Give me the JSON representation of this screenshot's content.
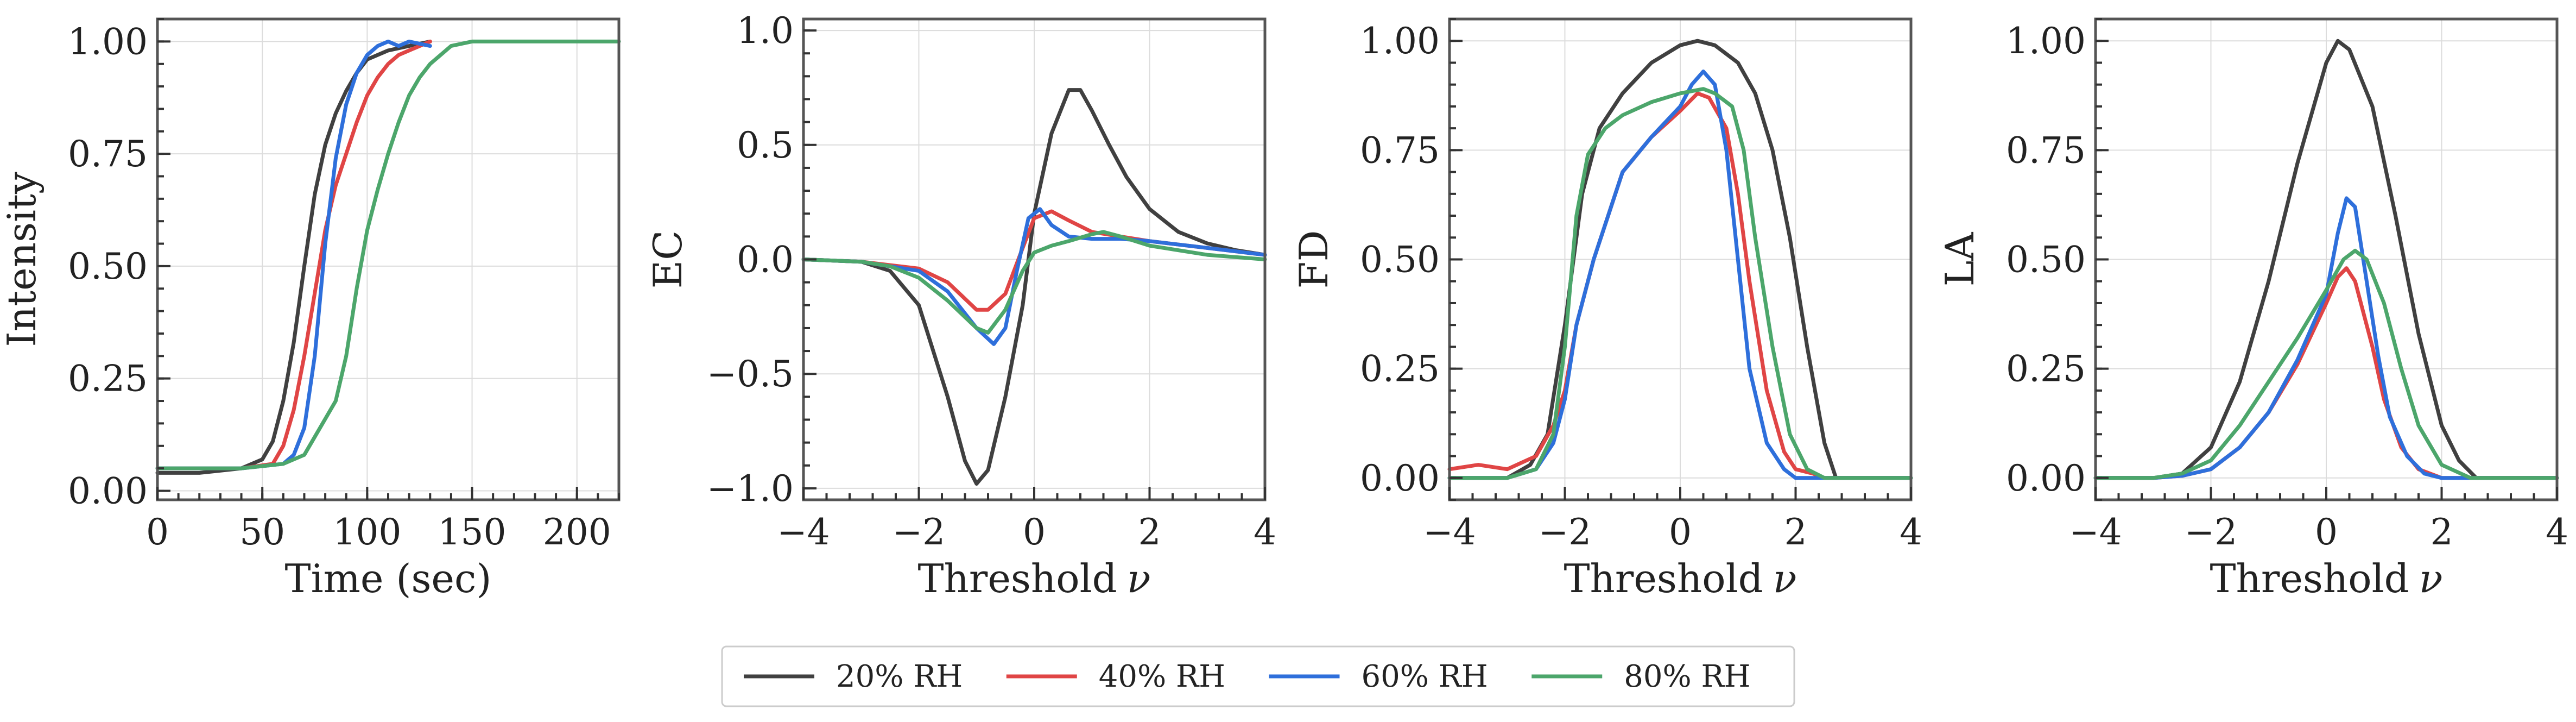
{
  "chart_data": [
    {
      "type": "line",
      "xlabel": "Time (sec)",
      "ylabel": "Intensity",
      "xlim": [
        0,
        220
      ],
      "ylim": [
        -0.02,
        1.05
      ],
      "xticks": [
        0,
        50,
        100,
        150,
        200
      ],
      "xtick_labels": [
        "0",
        "50",
        "100",
        "150",
        "200"
      ],
      "yticks": [
        0,
        0.25,
        0.5,
        0.75,
        1.0
      ],
      "ytick_labels": [
        "0.00",
        "0.25",
        "0.50",
        "0.75",
        "1.00"
      ],
      "grid": true,
      "series": [
        {
          "name": "20% RH",
          "color": "#404040",
          "x": [
            0,
            20,
            40,
            50,
            55,
            60,
            65,
            70,
            75,
            80,
            85,
            90,
            95,
            100,
            110,
            120,
            130
          ],
          "y": [
            0.04,
            0.04,
            0.05,
            0.07,
            0.11,
            0.2,
            0.33,
            0.5,
            0.66,
            0.77,
            0.84,
            0.89,
            0.93,
            0.96,
            0.98,
            0.99,
            1.0
          ]
        },
        {
          "name": "40% RH",
          "color": "#e04545",
          "x": [
            0,
            20,
            40,
            55,
            60,
            65,
            70,
            75,
            80,
            85,
            90,
            95,
            100,
            105,
            110,
            115,
            120,
            125,
            130
          ],
          "y": [
            0.05,
            0.05,
            0.05,
            0.06,
            0.1,
            0.18,
            0.3,
            0.44,
            0.58,
            0.68,
            0.75,
            0.82,
            0.88,
            0.92,
            0.95,
            0.97,
            0.98,
            0.99,
            1.0
          ]
        },
        {
          "name": "60% RH",
          "color": "#2e6fdb",
          "x": [
            0,
            40,
            60,
            65,
            70,
            75,
            80,
            85,
            90,
            95,
            100,
            105,
            110,
            115,
            120,
            130
          ],
          "y": [
            0.05,
            0.05,
            0.06,
            0.08,
            0.14,
            0.3,
            0.55,
            0.74,
            0.86,
            0.93,
            0.97,
            0.99,
            1.0,
            0.99,
            1.0,
            0.99
          ]
        },
        {
          "name": "80% RH",
          "color": "#4ca66b",
          "x": [
            0,
            40,
            60,
            70,
            75,
            80,
            85,
            90,
            95,
            100,
            105,
            110,
            115,
            120,
            125,
            130,
            135,
            140,
            150,
            160,
            180,
            200,
            220
          ],
          "y": [
            0.05,
            0.05,
            0.06,
            0.08,
            0.12,
            0.16,
            0.2,
            0.3,
            0.45,
            0.58,
            0.67,
            0.75,
            0.82,
            0.88,
            0.92,
            0.95,
            0.97,
            0.99,
            1.0,
            1.0,
            1.0,
            1.0,
            1.0
          ]
        }
      ]
    },
    {
      "type": "line",
      "xlabel": "Threshold",
      "xlabel_var": "ν",
      "ylabel": "EC",
      "xlim": [
        -4,
        4
      ],
      "ylim": [
        -1.05,
        1.05
      ],
      "xticks": [
        -4,
        -2,
        0,
        2,
        4
      ],
      "xtick_labels": [
        "−4",
        "−2",
        "0",
        "2",
        "4"
      ],
      "yticks": [
        -1,
        -0.5,
        0,
        0.5,
        1
      ],
      "ytick_labels": [
        "−1.0",
        "−0.5",
        "0.0",
        "0.5",
        "1.0"
      ],
      "grid": true,
      "series": [
        {
          "name": "20% RH",
          "color": "#404040",
          "x": [
            -4,
            -3,
            -2.5,
            -2,
            -1.5,
            -1.2,
            -1,
            -0.8,
            -0.5,
            -0.2,
            0,
            0.3,
            0.6,
            0.8,
            1,
            1.3,
            1.6,
            2,
            2.5,
            3,
            3.5,
            4
          ],
          "y": [
            0,
            -0.01,
            -0.05,
            -0.2,
            -0.6,
            -0.88,
            -0.98,
            -0.92,
            -0.6,
            -0.2,
            0.2,
            0.55,
            0.74,
            0.74,
            0.65,
            0.5,
            0.36,
            0.22,
            0.12,
            0.07,
            0.04,
            0.02
          ]
        },
        {
          "name": "40% RH",
          "color": "#e04545",
          "x": [
            -4,
            -3,
            -2,
            -1.5,
            -1,
            -0.8,
            -0.5,
            -0.2,
            0,
            0.3,
            0.6,
            1,
            1.5,
            2,
            3,
            4
          ],
          "y": [
            0,
            -0.01,
            -0.04,
            -0.1,
            -0.22,
            -0.22,
            -0.15,
            0.05,
            0.18,
            0.21,
            0.17,
            0.12,
            0.1,
            0.08,
            0.05,
            0.02
          ]
        },
        {
          "name": "60% RH",
          "color": "#2e6fdb",
          "x": [
            -4,
            -3,
            -2,
            -1.5,
            -1,
            -0.7,
            -0.5,
            -0.3,
            -0.1,
            0.1,
            0.3,
            0.6,
            1,
            1.5,
            2,
            3,
            4
          ],
          "y": [
            0,
            -0.01,
            -0.05,
            -0.14,
            -0.3,
            -0.37,
            -0.3,
            -0.05,
            0.18,
            0.22,
            0.15,
            0.1,
            0.09,
            0.09,
            0.08,
            0.05,
            0.02
          ]
        },
        {
          "name": "80% RH",
          "color": "#4ca66b",
          "x": [
            -4,
            -3,
            -2.5,
            -2,
            -1.5,
            -1,
            -0.8,
            -0.5,
            -0.2,
            0,
            0.3,
            0.6,
            1,
            1.2,
            1.5,
            2,
            3,
            4
          ],
          "y": [
            0,
            -0.01,
            -0.03,
            -0.08,
            -0.18,
            -0.3,
            -0.32,
            -0.22,
            -0.05,
            0.03,
            0.06,
            0.08,
            0.11,
            0.12,
            0.1,
            0.06,
            0.02,
            0
          ]
        }
      ]
    },
    {
      "type": "line",
      "xlabel": "Threshold",
      "xlabel_var": "ν",
      "ylabel": "FD",
      "xlim": [
        -4,
        4
      ],
      "ylim": [
        -0.05,
        1.05
      ],
      "xticks": [
        -4,
        -2,
        0,
        2,
        4
      ],
      "xtick_labels": [
        "−4",
        "−2",
        "0",
        "2",
        "4"
      ],
      "yticks": [
        0,
        0.25,
        0.5,
        0.75,
        1.0
      ],
      "ytick_labels": [
        "0.00",
        "0.25",
        "0.50",
        "0.75",
        "1.00"
      ],
      "grid": true,
      "series": [
        {
          "name": "20% RH",
          "color": "#404040",
          "x": [
            -4,
            -3,
            -2.6,
            -2.3,
            -2,
            -1.7,
            -1.4,
            -1,
            -0.5,
            0,
            0.3,
            0.6,
            1,
            1.3,
            1.6,
            1.9,
            2.2,
            2.5,
            2.7,
            3,
            4
          ],
          "y": [
            0,
            0,
            0.03,
            0.1,
            0.35,
            0.65,
            0.8,
            0.88,
            0.95,
            0.99,
            1.0,
            0.99,
            0.95,
            0.88,
            0.75,
            0.55,
            0.3,
            0.08,
            0,
            0,
            0
          ]
        },
        {
          "name": "40% RH",
          "color": "#e04545",
          "x": [
            -4,
            -3.5,
            -3,
            -2.5,
            -2.2,
            -2,
            -1.8,
            -1.5,
            -1.2,
            -1,
            -0.5,
            0,
            0.3,
            0.5,
            0.8,
            1,
            1.2,
            1.5,
            1.8,
            2,
            2.3,
            2.5,
            3,
            4
          ],
          "y": [
            0.02,
            0.03,
            0.02,
            0.05,
            0.12,
            0.2,
            0.35,
            0.5,
            0.62,
            0.7,
            0.78,
            0.84,
            0.88,
            0.87,
            0.8,
            0.65,
            0.45,
            0.2,
            0.06,
            0.02,
            0.01,
            0,
            0,
            0
          ]
        },
        {
          "name": "60% RH",
          "color": "#2e6fdb",
          "x": [
            -4,
            -3,
            -2.5,
            -2.2,
            -2,
            -1.8,
            -1.5,
            -1.2,
            -1,
            -0.5,
            0,
            0.2,
            0.4,
            0.6,
            0.8,
            1,
            1.2,
            1.5,
            1.8,
            2,
            2.5,
            4
          ],
          "y": [
            0,
            0,
            0.02,
            0.08,
            0.18,
            0.35,
            0.5,
            0.62,
            0.7,
            0.78,
            0.85,
            0.9,
            0.93,
            0.9,
            0.75,
            0.5,
            0.25,
            0.08,
            0.02,
            0,
            0,
            0
          ]
        },
        {
          "name": "80% RH",
          "color": "#4ca66b",
          "x": [
            -4,
            -3,
            -2.5,
            -2.2,
            -2,
            -1.8,
            -1.6,
            -1.3,
            -1,
            -0.5,
            0,
            0.4,
            0.6,
            0.9,
            1.1,
            1.3,
            1.6,
            1.9,
            2.2,
            2.5,
            4
          ],
          "y": [
            0,
            0,
            0.02,
            0.1,
            0.3,
            0.6,
            0.74,
            0.8,
            0.83,
            0.86,
            0.88,
            0.89,
            0.88,
            0.85,
            0.75,
            0.55,
            0.3,
            0.1,
            0.02,
            0,
            0
          ]
        }
      ]
    },
    {
      "type": "line",
      "xlabel": "Threshold",
      "xlabel_var": "ν",
      "ylabel": "LA",
      "xlim": [
        -4,
        4
      ],
      "ylim": [
        -0.05,
        1.05
      ],
      "xticks": [
        -4,
        -2,
        0,
        2,
        4
      ],
      "xtick_labels": [
        "−4",
        "−2",
        "0",
        "2",
        "4"
      ],
      "yticks": [
        0,
        0.25,
        0.5,
        0.75,
        1.0
      ],
      "ytick_labels": [
        "0.00",
        "0.25",
        "0.50",
        "0.75",
        "1.00"
      ],
      "grid": true,
      "series": [
        {
          "name": "20% RH",
          "color": "#404040",
          "x": [
            -4,
            -3,
            -2.5,
            -2,
            -1.5,
            -1,
            -0.5,
            0,
            0.2,
            0.4,
            0.8,
            1.2,
            1.6,
            2,
            2.3,
            2.6,
            3,
            4
          ],
          "y": [
            0,
            0,
            0.01,
            0.07,
            0.22,
            0.45,
            0.72,
            0.95,
            1.0,
            0.98,
            0.85,
            0.6,
            0.33,
            0.12,
            0.04,
            0,
            0,
            0
          ]
        },
        {
          "name": "40% RH",
          "color": "#e04545",
          "x": [
            -4,
            -3,
            -2.5,
            -2,
            -1.5,
            -1,
            -0.5,
            0,
            0.2,
            0.35,
            0.5,
            0.8,
            1,
            1.3,
            1.6,
            2,
            2.5,
            4
          ],
          "y": [
            0,
            0,
            0.005,
            0.02,
            0.07,
            0.15,
            0.26,
            0.4,
            0.46,
            0.48,
            0.45,
            0.3,
            0.18,
            0.07,
            0.02,
            0,
            0,
            0
          ]
        },
        {
          "name": "60% RH",
          "color": "#2e6fdb",
          "x": [
            -4,
            -3,
            -2.5,
            -2,
            -1.5,
            -1,
            -0.5,
            0,
            0.2,
            0.35,
            0.5,
            0.7,
            0.9,
            1.1,
            1.4,
            1.7,
            2,
            2.5,
            4
          ],
          "y": [
            0,
            0,
            0.005,
            0.02,
            0.07,
            0.15,
            0.27,
            0.42,
            0.56,
            0.64,
            0.62,
            0.45,
            0.28,
            0.14,
            0.05,
            0.01,
            0,
            0,
            0
          ]
        },
        {
          "name": "80% RH",
          "color": "#4ca66b",
          "x": [
            -4,
            -3,
            -2.5,
            -2,
            -1.5,
            -1,
            -0.5,
            0,
            0.3,
            0.5,
            0.7,
            1,
            1.3,
            1.6,
            2,
            2.5,
            4
          ],
          "y": [
            0,
            0,
            0.01,
            0.04,
            0.12,
            0.22,
            0.32,
            0.43,
            0.5,
            0.52,
            0.5,
            0.4,
            0.25,
            0.12,
            0.03,
            0,
            0
          ]
        }
      ]
    }
  ],
  "legend": {
    "placement": "bottom-center",
    "entries": [
      {
        "label": "20% RH",
        "color": "#404040"
      },
      {
        "label": "40% RH",
        "color": "#e04545"
      },
      {
        "label": "60% RH",
        "color": "#2e6fdb"
      },
      {
        "label": "80% RH",
        "color": "#4ca66b"
      }
    ]
  }
}
